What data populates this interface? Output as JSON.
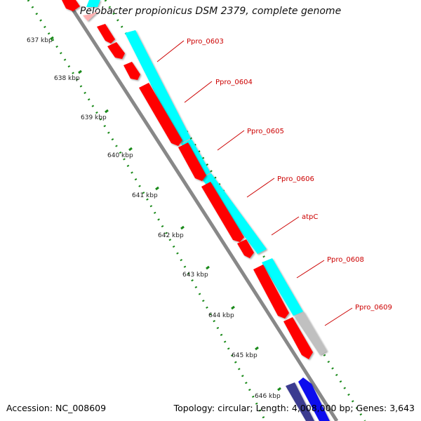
{
  "title": "Pelobacter propionicus DSM 2379, complete genome",
  "footer": {
    "accession": "Accession: NC_008609",
    "summary": "Topology: circular; Length: 4,008,000 bp; Genes: 3,643"
  },
  "kbp_ticks": [
    "637 kbp",
    "638 kbp",
    "639 kbp",
    "640 kbp",
    "641 kbp",
    "642 kbp",
    "643 kbp",
    "644 kbp",
    "645 kbp",
    "646 kbp"
  ],
  "gene_labels": [
    "Ppro_0603",
    "Ppro_0604",
    "Ppro_0605",
    "Ppro_0606",
    "atpC",
    "Ppro_0608",
    "Ppro_0609"
  ],
  "colors": {
    "cds": "#ff0000",
    "orf": "#00ffff",
    "backbone": "#888888",
    "gc_ticks": "#1a8a1a",
    "label": "#cc0000",
    "gray_feature": "#c0c0c0",
    "blue_feature": "#1010ee",
    "navy_feature": "#3a3a90"
  }
}
